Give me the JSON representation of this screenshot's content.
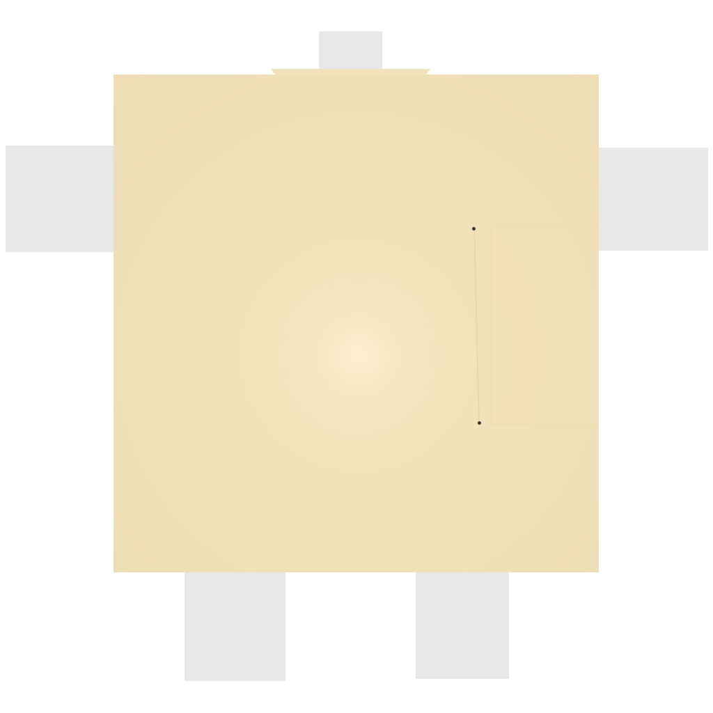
{
  "scene": {
    "colors": {
      "background": "#ffffff",
      "side_blocks": "#e8e8e8",
      "panel_center": "#fdefd0",
      "panel_edge": "#eeddb5",
      "marker_dots": "#3c3a33"
    },
    "markers": [
      "marker-dot",
      "marker-dot"
    ]
  }
}
